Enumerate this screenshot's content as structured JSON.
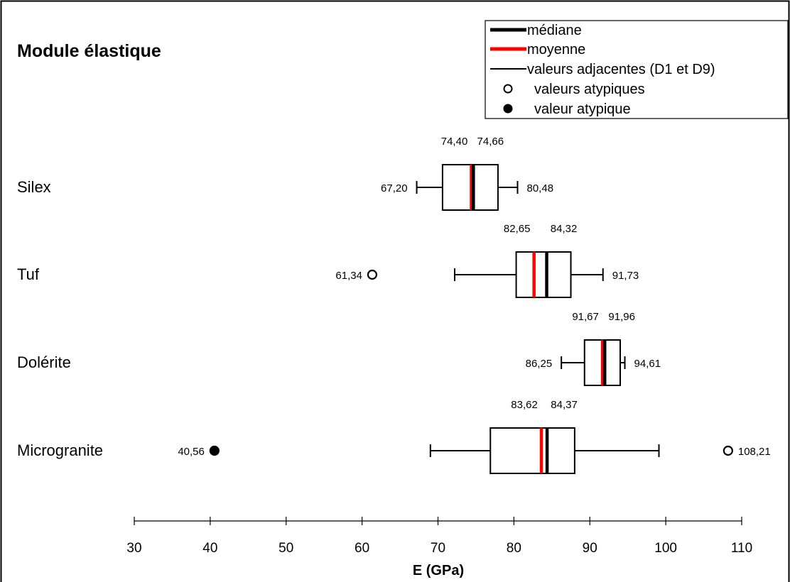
{
  "chart_data": {
    "type": "boxplot",
    "title": "Module élastique",
    "xlabel": "E (GPa)",
    "xlim": [
      30,
      110
    ],
    "xticks": [
      30,
      40,
      50,
      60,
      70,
      80,
      90,
      100,
      110
    ],
    "grid": false,
    "legend_position": "top-right",
    "legend": [
      {
        "label": "médiane",
        "kind": "median-line",
        "color": "#000000"
      },
      {
        "label": "moyenne",
        "kind": "mean-line",
        "color": "#ff0000"
      },
      {
        "label": "valeurs adjacentes (D1 et D9)",
        "kind": "whisker-line",
        "color": "#000000"
      },
      {
        "label": "valeurs atypiques",
        "kind": "open-circle",
        "color": "#000000"
      },
      {
        "label": "valeur atypique",
        "kind": "filled-circle",
        "color": "#000000"
      }
    ],
    "series": [
      {
        "name": "Silex",
        "whisker_low": 67.2,
        "q1": 70.6,
        "median": 74.66,
        "mean": 74.4,
        "q3": 77.9,
        "whisker_high": 80.48,
        "median_label": "74,66",
        "mean_label": "74,40",
        "whisker_low_label": "67,20",
        "whisker_high_label": "80,48",
        "outliers": []
      },
      {
        "name": "Tuf",
        "whisker_low": 72.2,
        "q1": 80.3,
        "median": 84.32,
        "mean": 82.65,
        "q3": 87.5,
        "whisker_high": 91.73,
        "median_label": "84,32",
        "mean_label": "82,65",
        "whisker_low_label": "",
        "whisker_high_label": "91,73",
        "outliers": [
          {
            "value": 61.34,
            "label": "61,34",
            "filled": false
          }
        ]
      },
      {
        "name": "Dolérite",
        "whisker_low": 86.25,
        "q1": 89.3,
        "median": 91.96,
        "mean": 91.67,
        "q3": 94.0,
        "whisker_high": 94.61,
        "median_label": "91,96",
        "mean_label": "91,67",
        "whisker_low_label": "86,25",
        "whisker_high_label": "94,61",
        "outliers": []
      },
      {
        "name": "Microgranite",
        "whisker_low": 69.0,
        "q1": 76.9,
        "median": 84.37,
        "mean": 83.62,
        "q3": 88.0,
        "whisker_high": 99.1,
        "median_label": "84,37",
        "mean_label": "83,62",
        "whisker_low_label": "",
        "whisker_high_label": "",
        "outliers": [
          {
            "value": 40.56,
            "label": "40,56",
            "filled": true
          },
          {
            "value": 108.21,
            "label": "108,21",
            "filled": false
          }
        ]
      }
    ]
  }
}
